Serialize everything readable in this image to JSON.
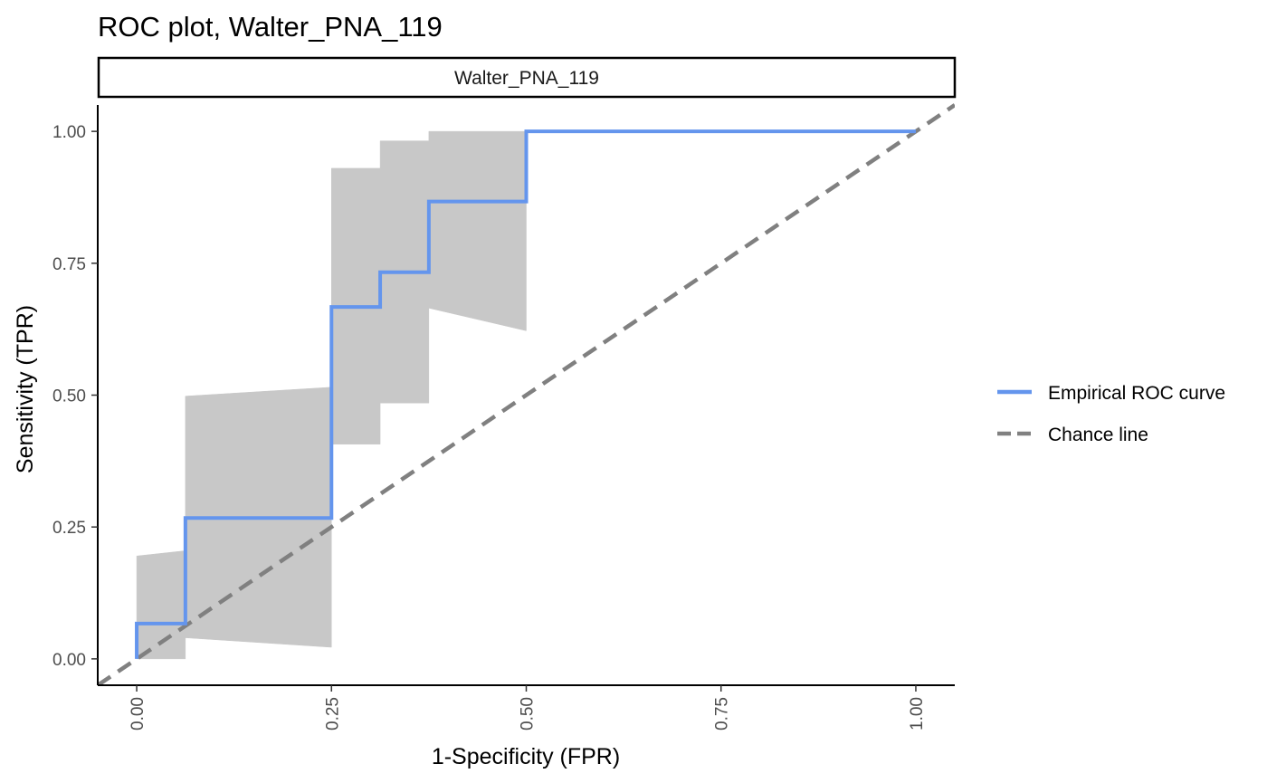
{
  "chart_data": {
    "type": "line",
    "title": "ROC plot, Walter_PNA_119",
    "facet_label": "Walter_PNA_119",
    "xlabel": "1-Specificity (FPR)",
    "ylabel": "Sensitivity (TPR)",
    "xlim": [
      -0.05,
      1.05
    ],
    "ylim": [
      -0.05,
      1.05
    ],
    "x_ticks": [
      0,
      0.25,
      0.5,
      0.75,
      1
    ],
    "x_tick_labels": [
      "0.00",
      "0.25",
      "0.50",
      "0.75",
      "1.00"
    ],
    "y_ticks": [
      0,
      0.25,
      0.5,
      0.75,
      1
    ],
    "y_tick_labels": [
      "0.00",
      "0.25",
      "0.50",
      "0.75",
      "1.00"
    ],
    "grid": false,
    "legend_position": "right",
    "series": [
      {
        "name": "Empirical ROC curve",
        "color": "#6495ED",
        "style": "solid",
        "points": [
          [
            0,
            0
          ],
          [
            0,
            0.067
          ],
          [
            0.0625,
            0.067
          ],
          [
            0.0625,
            0.267
          ],
          [
            0.25,
            0.267
          ],
          [
            0.25,
            0.667
          ],
          [
            0.3125,
            0.667
          ],
          [
            0.3125,
            0.733
          ],
          [
            0.375,
            0.733
          ],
          [
            0.375,
            0.867
          ],
          [
            0.5,
            0.867
          ],
          [
            0.5,
            1
          ],
          [
            1,
            1
          ]
        ]
      },
      {
        "name": "Chance line",
        "color": "#808080",
        "style": "dashed",
        "points": [
          [
            -0.05,
            -0.05
          ],
          [
            1.05,
            1.05
          ]
        ]
      }
    ],
    "confidence_band": {
      "color": "#C8C8C8",
      "segments": [
        {
          "x": [
            0,
            0.0625
          ],
          "lower": [
            0,
            0
          ],
          "upper": [
            0.195,
            0.205
          ]
        },
        {
          "x": [
            0.0625,
            0.25
          ],
          "lower": [
            0.04,
            0.022
          ],
          "upper": [
            0.498,
            0.515
          ]
        },
        {
          "x": [
            0.25,
            0.3125
          ],
          "lower": [
            0.407,
            0.407
          ],
          "upper": [
            0.93,
            0.93
          ]
        },
        {
          "x": [
            0.3125,
            0.375
          ],
          "lower": [
            0.485,
            0.485
          ],
          "upper": [
            0.982,
            0.982
          ]
        },
        {
          "x": [
            0.375,
            0.5
          ],
          "lower": [
            0.665,
            0.622
          ],
          "upper": [
            1,
            1
          ]
        }
      ]
    }
  }
}
